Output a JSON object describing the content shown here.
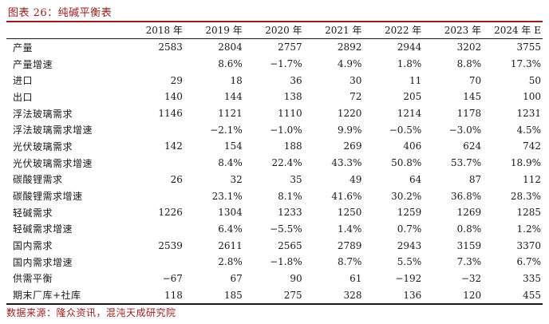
{
  "title": "图表 26：纯碱平衡表",
  "source": "数据来源：隆众资讯，混沌天成研究院",
  "table": {
    "headers": [
      "",
      "2018 年",
      "2019 年",
      "2020 年",
      "2021 年",
      "2022 年",
      "2023 年",
      "2024 年 E"
    ],
    "rows": [
      [
        "产量",
        "2583",
        "2804",
        "2757",
        "2892",
        "2944",
        "3202",
        "3755"
      ],
      [
        "产量增速",
        "",
        "8.6%",
        "−1.7%",
        "4.9%",
        "1.8%",
        "8.8%",
        "17.3%"
      ],
      [
        "进口",
        "29",
        "18",
        "36",
        "30",
        "11",
        "70",
        "50"
      ],
      [
        "出口",
        "140",
        "144",
        "138",
        "72",
        "205",
        "145",
        "100"
      ],
      [
        "浮法玻璃需求",
        "1146",
        "1121",
        "1110",
        "1220",
        "1214",
        "1178",
        "1231"
      ],
      [
        "浮法玻璃需求增速",
        "",
        "−2.1%",
        "−1.0%",
        "9.9%",
        "−0.5%",
        "−3.0%",
        "4.5%"
      ],
      [
        "光伏玻璃需求",
        "142",
        "154",
        "188",
        "269",
        "406",
        "624",
        "742"
      ],
      [
        "光伏玻璃需求增速",
        "",
        "8.4%",
        "22.4%",
        "43.3%",
        "50.8%",
        "53.7%",
        "18.9%"
      ],
      [
        "碳酸锂需求",
        "26",
        "32",
        "35",
        "49",
        "64",
        "87",
        "112"
      ],
      [
        "碳酸锂需求增速",
        "",
        "23.1%",
        "8.1%",
        "41.6%",
        "30.2%",
        "36.8%",
        "28.3%"
      ],
      [
        "轻碱需求",
        "1226",
        "1304",
        "1233",
        "1250",
        "1259",
        "1269",
        "1285"
      ],
      [
        "轻碱需求增速",
        "",
        "6.4%",
        "−5.5%",
        "1.4%",
        "0.7%",
        "0.8%",
        "1.2%"
      ],
      [
        "国内需求",
        "2539",
        "2611",
        "2565",
        "2789",
        "2943",
        "3159",
        "3370"
      ],
      [
        "国内需求增速",
        "",
        "2.8%",
        "−1.8%",
        "8.7%",
        "5.5%",
        "7.3%",
        "6.7%"
      ],
      [
        "供需平衡",
        "−67",
        "67",
        "90",
        "61",
        "−192",
        "−32",
        "335"
      ],
      [
        "期末厂库+社库",
        "118",
        "185",
        "275",
        "328",
        "136",
        "120",
        "455"
      ]
    ]
  }
}
